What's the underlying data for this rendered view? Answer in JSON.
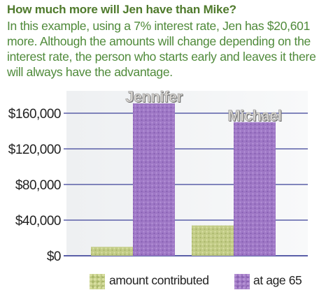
{
  "headline": "How much more will Jen have than Mike?",
  "body_text": "In this example, using a 7% interest rate, Jen has $20,601 more.  Although the amounts will change depending on the interest rate, the person who starts early and leaves it there will always have the advantage.",
  "colors": {
    "headline": "#4f7a2c",
    "body_text": "#4f8a3a",
    "contributed": "#c2cc86",
    "age65": "#a07ac4",
    "grid": "#5a5fa8"
  },
  "chart_data": {
    "type": "bar",
    "categories": [
      "Jennifer",
      "Michael"
    ],
    "series": [
      {
        "name": "amount contributed",
        "values": [
          10000,
          34000
        ]
      },
      {
        "name": "at age 65",
        "values": [
          171000,
          150000
        ]
      }
    ],
    "yticks": [
      "$160,000",
      "$120,000",
      "$80,000",
      "$40,000",
      "$0"
    ],
    "ytick_values": [
      160000,
      120000,
      80000,
      40000,
      0
    ],
    "ylim": [
      0,
      180000
    ],
    "grid": true,
    "legend": "bottom"
  }
}
